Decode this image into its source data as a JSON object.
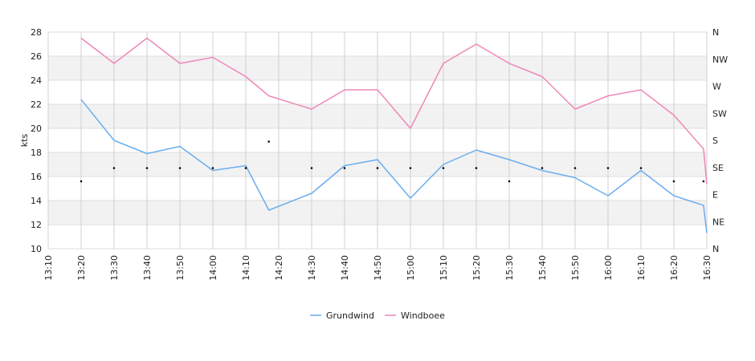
{
  "chart_data": {
    "type": "line",
    "ylabel": "kts",
    "ylim": [
      10,
      28
    ],
    "y_ticks": [
      10,
      12,
      14,
      16,
      18,
      20,
      22,
      24,
      26,
      28
    ],
    "x_tick_labels": [
      "13:10",
      "13:20",
      "13:30",
      "13:40",
      "13:50",
      "14:00",
      "14:10",
      "14:20",
      "14:30",
      "14:40",
      "14:50",
      "15:00",
      "15:10",
      "15:20",
      "15:30",
      "15:40",
      "15:50",
      "16:00",
      "16:10",
      "16:20",
      "16:30"
    ],
    "x_range": [
      "13:10",
      "16:30"
    ],
    "right_axis_labels": [
      "N",
      "NE",
      "E",
      "SE",
      "S",
      "SW",
      "W",
      "NW",
      "N"
    ],
    "grid": true,
    "legend_position": "bottom-center",
    "series": [
      {
        "name": "Grundwind",
        "color": "#6aaeee",
        "x": [
          "13:20",
          "13:30",
          "13:40",
          "13:50",
          "14:00",
          "14:10",
          "14:17",
          "14:30",
          "14:40",
          "14:50",
          "15:00",
          "15:10",
          "15:20",
          "15:30",
          "15:40",
          "15:50",
          "16:00",
          "16:10",
          "16:20",
          "16:29",
          "16:30"
        ],
        "values": [
          22.4,
          19.0,
          17.9,
          18.5,
          16.5,
          16.9,
          13.2,
          14.6,
          16.9,
          17.4,
          14.2,
          17.0,
          18.2,
          17.4,
          16.5,
          15.9,
          14.4,
          16.5,
          14.4,
          13.6,
          11.3
        ]
      },
      {
        "name": "Windboee",
        "color": "#ee88b8",
        "x": [
          "13:20",
          "13:30",
          "13:40",
          "13:50",
          "14:00",
          "14:10",
          "14:17",
          "14:30",
          "14:40",
          "14:50",
          "15:00",
          "15:10",
          "15:20",
          "15:30",
          "15:40",
          "15:50",
          "16:00",
          "16:10",
          "16:20",
          "16:29",
          "16:30"
        ],
        "values": [
          27.5,
          25.4,
          27.5,
          25.4,
          25.9,
          24.3,
          22.7,
          21.6,
          23.2,
          23.2,
          20.0,
          25.4,
          27.0,
          25.4,
          24.3,
          21.6,
          22.7,
          23.2,
          21.1,
          18.3,
          15.4
        ]
      }
    ],
    "direction_points": {
      "x": [
        "13:20",
        "13:30",
        "13:40",
        "13:50",
        "14:00",
        "14:10",
        "14:17",
        "14:30",
        "14:40",
        "14:50",
        "15:00",
        "15:10",
        "15:20",
        "15:30",
        "15:40",
        "15:50",
        "16:00",
        "16:10",
        "16:20",
        "16:29"
      ],
      "values": [
        15.6,
        16.7,
        16.7,
        16.7,
        16.7,
        16.7,
        18.9,
        16.7,
        16.7,
        16.7,
        16.7,
        16.7,
        16.7,
        15.6,
        16.7,
        16.7,
        16.7,
        16.7,
        15.6,
        15.6
      ]
    }
  }
}
